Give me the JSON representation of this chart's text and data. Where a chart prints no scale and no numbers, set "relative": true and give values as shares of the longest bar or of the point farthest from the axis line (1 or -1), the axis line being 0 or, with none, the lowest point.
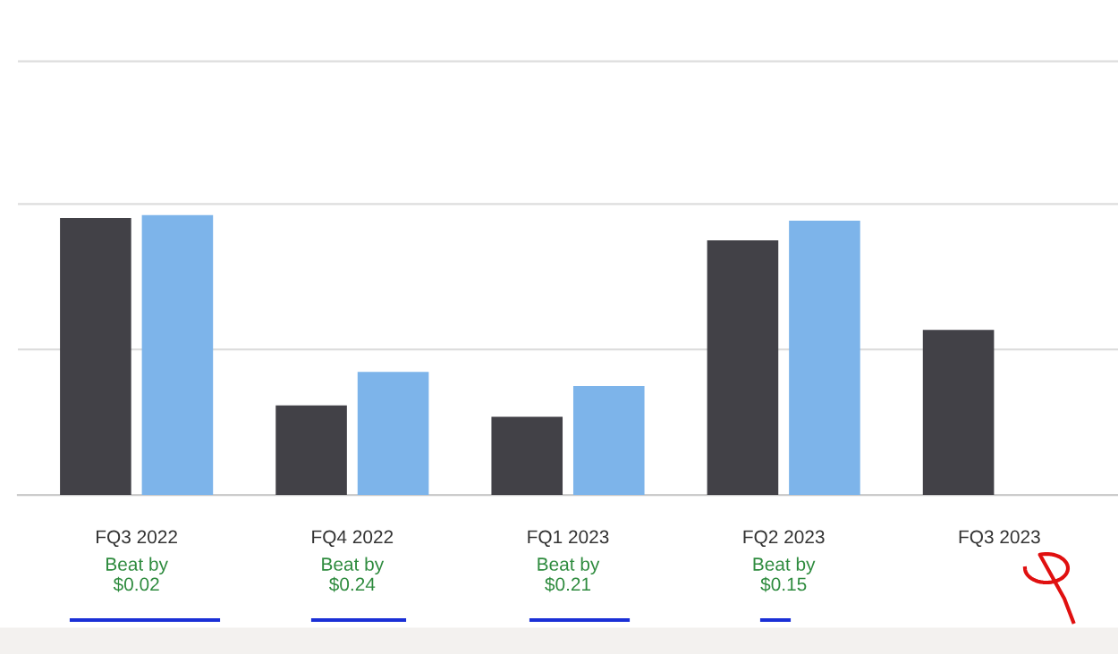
{
  "chart_data": {
    "type": "bar",
    "relative": true,
    "categories": [
      "FQ3 2022",
      "FQ4 2022",
      "FQ1 2023",
      "FQ2 2023",
      "FQ3 2023"
    ],
    "series": [
      {
        "color": "#424147",
        "values": [
          0.99,
          0.32,
          0.28,
          0.91,
          0.59
        ]
      },
      {
        "color": "#7db4ea",
        "values": [
          1,
          0.44,
          0.39,
          0.98,
          null
        ]
      }
    ],
    "ref_lines": [
      {
        "axis": "y",
        "value": 0.52,
        "color": "#dddddd"
      },
      {
        "axis": "y",
        "value": 1.04,
        "color": "#dddddd"
      },
      {
        "axis": "y",
        "value": 1.55,
        "color": "#dddddd"
      }
    ],
    "legend": false,
    "annotations": [
      "Beat by\n$0.02",
      "Beat by\n$0.24",
      "Beat by\n$0.21",
      "Beat by\n$0.15"
    ]
  }
}
